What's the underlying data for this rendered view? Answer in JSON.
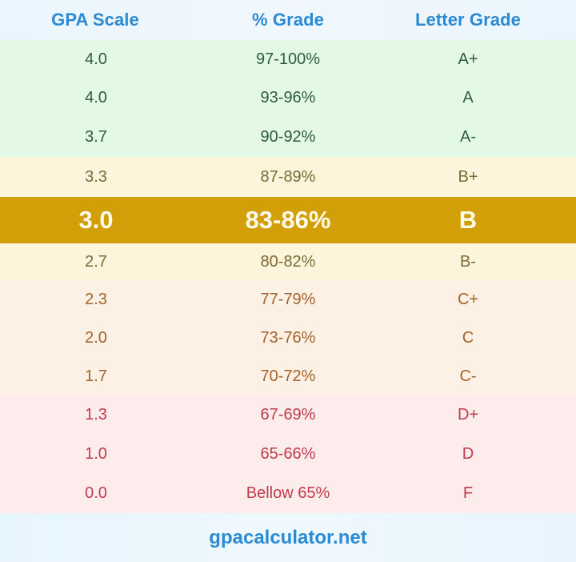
{
  "header": {
    "columns": [
      "GPA Scale",
      "% Grade",
      "Letter Grade"
    ]
  },
  "rows": [
    {
      "gpa": "4.0",
      "percent": "97-100%",
      "letter": "A+",
      "group": "A"
    },
    {
      "gpa": "4.0",
      "percent": "93-96%",
      "letter": "A",
      "group": "A"
    },
    {
      "gpa": "3.7",
      "percent": "90-92%",
      "letter": "A-",
      "group": "A"
    },
    {
      "gpa": "3.3",
      "percent": "87-89%",
      "letter": "B+",
      "group": "B"
    },
    {
      "gpa": "3.0",
      "percent": "83-86%",
      "letter": "B",
      "group": "B",
      "highlighted": true
    },
    {
      "gpa": "2.7",
      "percent": "80-82%",
      "letter": "B-",
      "group": "B"
    },
    {
      "gpa": "2.3",
      "percent": "77-79%",
      "letter": "C+",
      "group": "C"
    },
    {
      "gpa": "2.0",
      "percent": "73-76%",
      "letter": "C",
      "group": "C"
    },
    {
      "gpa": "1.7",
      "percent": "70-72%",
      "letter": "C-",
      "group": "C"
    },
    {
      "gpa": "1.3",
      "percent": "67-69%",
      "letter": "D+",
      "group": "D"
    },
    {
      "gpa": "1.0",
      "percent": "65-66%",
      "letter": "D",
      "group": "D"
    },
    {
      "gpa": "0.0",
      "percent": "Bellow 65%",
      "letter": "F",
      "group": "F"
    }
  ],
  "footer": {
    "site": "gpacalculator.net"
  },
  "colors": {
    "header_text": "#2a8bd4",
    "group_a_bg": "#e4f8e6",
    "group_a_text": "#2e5d3e",
    "group_b_bg": "#fdf4dc",
    "group_b_text": "#7b6a36",
    "highlight_bg": "#d29f08",
    "highlight_text": "#fffbea",
    "group_c_bg": "#fdf0e4",
    "group_c_text": "#a4632c",
    "group_d_bg": "#fdecec",
    "group_d_text": "#c23a4a"
  }
}
